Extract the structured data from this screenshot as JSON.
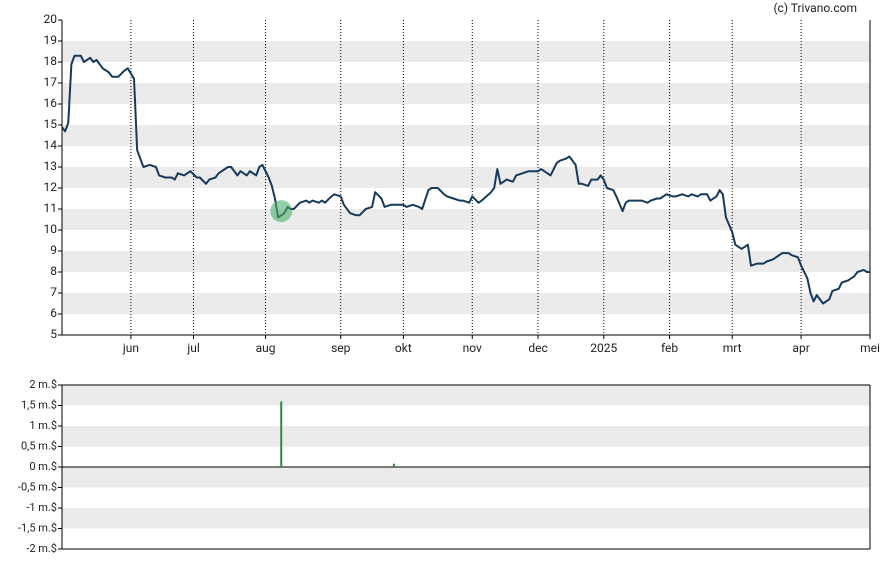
{
  "credit": "(c) Trivano.com",
  "chart_data": [
    {
      "type": "line",
      "color": "#17395a",
      "grid": "bands",
      "vgrid": true,
      "x": [
        0,
        1,
        2,
        3,
        4,
        6,
        7,
        9,
        10,
        11,
        13,
        15,
        16,
        18,
        20,
        21,
        23,
        24,
        26,
        28,
        30,
        31,
        33,
        35,
        36,
        37,
        39,
        41,
        43,
        44,
        46,
        47,
        49,
        50,
        53,
        54,
        56,
        57,
        59,
        60,
        62,
        63,
        64,
        66,
        67,
        68,
        69,
        71,
        72,
        73,
        74,
        76,
        78,
        79,
        80,
        82,
        83,
        84,
        86,
        87,
        89,
        90,
        92,
        94,
        95,
        97,
        99,
        100,
        102,
        103,
        105,
        107,
        109,
        110,
        112,
        114,
        115,
        117,
        118,
        120,
        122,
        123,
        125,
        127,
        128,
        130,
        131,
        133,
        134,
        137,
        138,
        139,
        140,
        142,
        144,
        145,
        147,
        149,
        150,
        152,
        153,
        155,
        156,
        158,
        159,
        161,
        162,
        164,
        165,
        166,
        168,
        169,
        171,
        172,
        173,
        174,
        176,
        177,
        179,
        180,
        181,
        183,
        185,
        187,
        188,
        190,
        191,
        193,
        195,
        196,
        198,
        200,
        201,
        203,
        204,
        206,
        207,
        209,
        210,
        211,
        212,
        214,
        215,
        217,
        218,
        219,
        220,
        222,
        224,
        225,
        227,
        228,
        230,
        232,
        233,
        235,
        236,
        238,
        239,
        240,
        241,
        243,
        245,
        246,
        248,
        249,
        251,
        253,
        254,
        256,
        257,
        258
      ],
      "values": [
        14.9,
        14.7,
        15.1,
        17.9,
        18.3,
        18.3,
        18.0,
        18.2,
        18.0,
        18.1,
        17.7,
        17.5,
        17.3,
        17.3,
        17.6,
        17.7,
        17.2,
        13.8,
        13.0,
        13.1,
        13.0,
        12.6,
        12.5,
        12.5,
        12.4,
        12.7,
        12.6,
        12.8,
        12.5,
        12.5,
        12.2,
        12.4,
        12.5,
        12.7,
        13.0,
        13.0,
        12.6,
        12.8,
        12.6,
        12.8,
        12.6,
        13.0,
        13.1,
        12.5,
        12.1,
        11.5,
        10.6,
        10.8,
        11.1,
        11.0,
        11.0,
        11.3,
        11.4,
        11.3,
        11.4,
        11.3,
        11.4,
        11.3,
        11.6,
        11.7,
        11.6,
        11.2,
        10.8,
        10.7,
        10.7,
        11.0,
        11.1,
        11.8,
        11.5,
        11.1,
        11.2,
        11.2,
        11.2,
        11.1,
        11.2,
        11.1,
        11.0,
        11.9,
        12.0,
        12.0,
        11.7,
        11.6,
        11.5,
        11.4,
        11.4,
        11.3,
        11.6,
        11.3,
        11.4,
        11.8,
        12.0,
        12.9,
        12.2,
        12.4,
        12.3,
        12.6,
        12.7,
        12.8,
        12.8,
        12.8,
        12.9,
        12.7,
        12.6,
        13.2,
        13.3,
        13.4,
        13.5,
        13.1,
        12.2,
        12.2,
        12.1,
        12.4,
        12.4,
        12.6,
        12.4,
        12.0,
        11.9,
        11.6,
        10.9,
        11.3,
        11.4,
        11.4,
        11.4,
        11.3,
        11.4,
        11.5,
        11.5,
        11.7,
        11.6,
        11.6,
        11.7,
        11.6,
        11.7,
        11.6,
        11.7,
        11.7,
        11.4,
        11.6,
        11.9,
        11.7,
        10.6,
        9.9,
        9.3,
        9.1,
        9.2,
        9.3,
        8.3,
        8.4,
        8.4,
        8.5,
        8.6,
        8.7,
        8.9,
        8.9,
        8.8,
        8.7,
        8.3,
        7.7,
        7.0,
        6.6,
        6.9,
        6.5,
        6.7,
        7.1,
        7.2,
        7.5,
        7.6,
        7.8,
        8.0,
        8.1,
        8.0,
        8.0
      ],
      "highlight": {
        "x": 70,
        "value": 10.9,
        "color": "#4caf6a"
      },
      "xlim": [
        0,
        258
      ],
      "xticks": [
        {
          "value": 22,
          "label": "jun"
        },
        {
          "value": 42,
          "label": "jul"
        },
        {
          "value": 65,
          "label": "aug"
        },
        {
          "value": 89,
          "label": "sep"
        },
        {
          "value": 109,
          "label": "okt"
        },
        {
          "value": 131,
          "label": "nov"
        },
        {
          "value": 152,
          "label": "dec"
        },
        {
          "value": 173,
          "label": "2025"
        },
        {
          "value": 194,
          "label": "feb"
        },
        {
          "value": 214,
          "label": "mrt"
        },
        {
          "value": 236,
          "label": "apr"
        },
        {
          "value": 258,
          "label": "mei"
        }
      ],
      "ylim": [
        5,
        20
      ],
      "yticks": [
        5,
        6,
        7,
        8,
        9,
        10,
        11,
        12,
        13,
        14,
        15,
        16,
        17,
        18,
        19,
        20
      ]
    },
    {
      "type": "bar",
      "color": "#2e8b3e",
      "grid": "bands",
      "x": [
        70,
        106
      ],
      "values": [
        1.6,
        0.08
      ],
      "xlim": [
        0,
        258
      ],
      "ylim": [
        -2,
        2
      ],
      "yticks": [
        {
          "value": -2,
          "label": "-2 m.$"
        },
        {
          "value": -1.5,
          "label": "-1,5 m.$"
        },
        {
          "value": -1,
          "label": "-1 m.$"
        },
        {
          "value": -0.5,
          "label": "-0,5 m.$"
        },
        {
          "value": 0,
          "label": "0 m.$"
        },
        {
          "value": 0.5,
          "label": "0,5 m.$"
        },
        {
          "value": 1,
          "label": "1 m.$"
        },
        {
          "value": 1.5,
          "label": "1,5 m.$"
        },
        {
          "value": 2,
          "label": "2 m.$"
        }
      ]
    }
  ]
}
